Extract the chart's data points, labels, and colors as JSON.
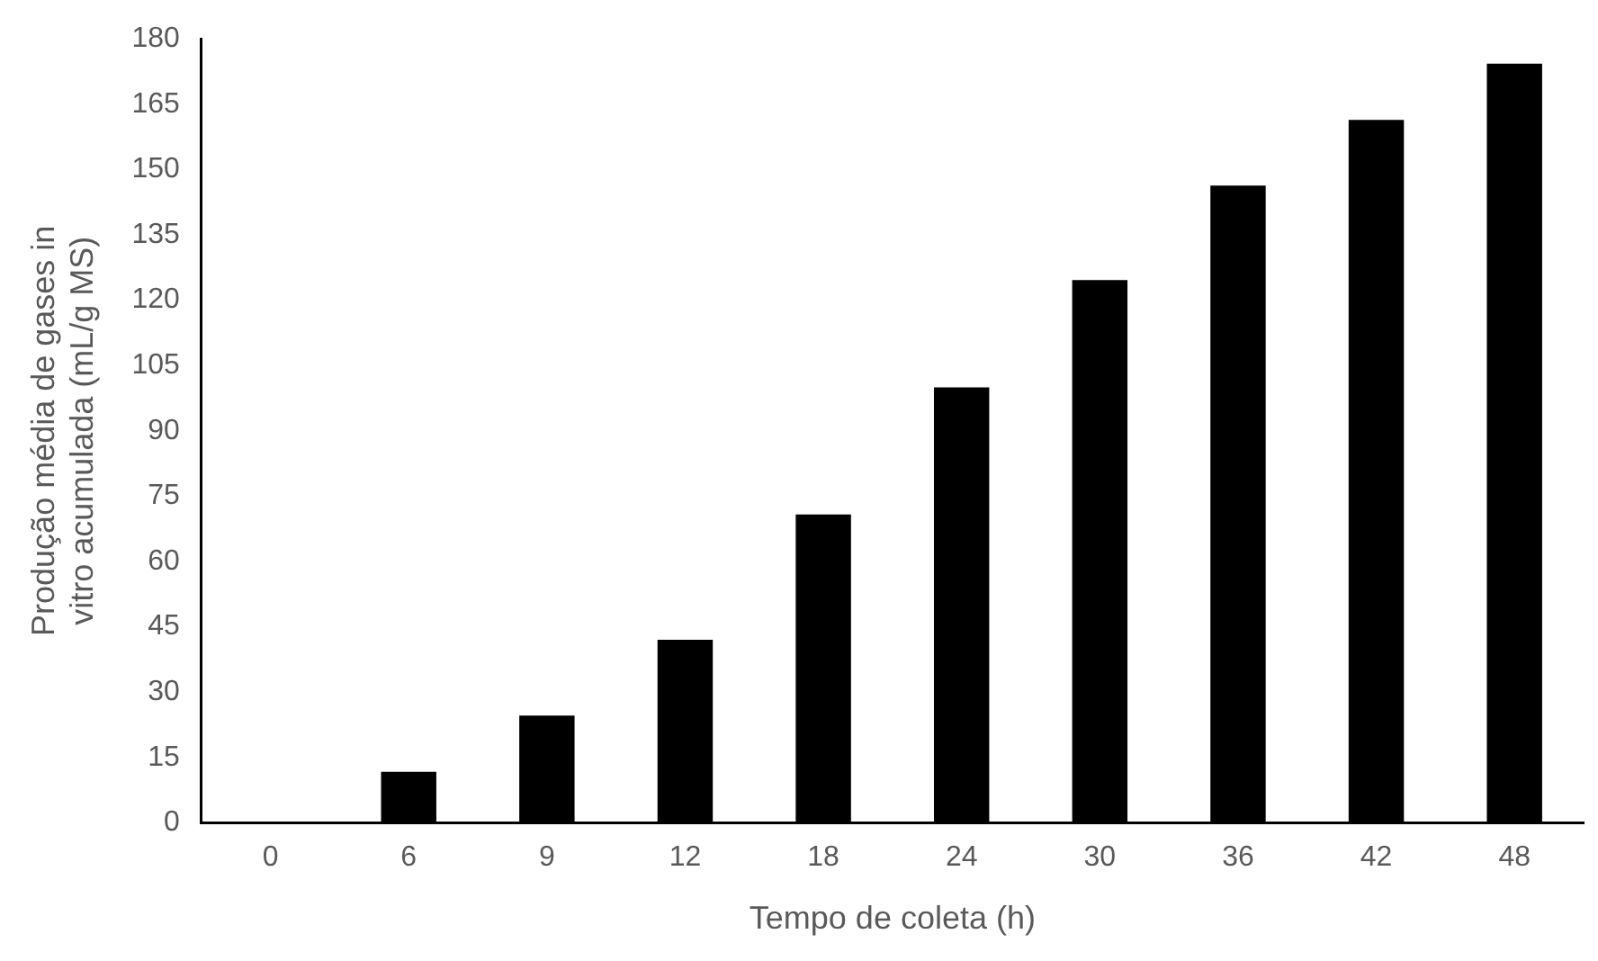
{
  "chart_data": {
    "type": "bar",
    "xlabel": "Tempo de coleta (h)",
    "ylabel": "Produção média de gases in vitro acumulada (mL/g MS)",
    "categories": [
      "0",
      "6",
      "9",
      "12",
      "18",
      "24",
      "30",
      "36",
      "42",
      "48"
    ],
    "values": [
      0,
      11.7,
      24.6,
      42,
      70.8,
      100,
      124.6,
      146.3,
      161.4,
      174.3
    ],
    "color": "#000000",
    "ylim": [
      0,
      180
    ],
    "yticks": [
      0,
      15,
      30,
      45,
      60,
      75,
      90,
      105,
      120,
      135,
      150,
      165,
      180
    ],
    "grid": false,
    "legend": false
  }
}
